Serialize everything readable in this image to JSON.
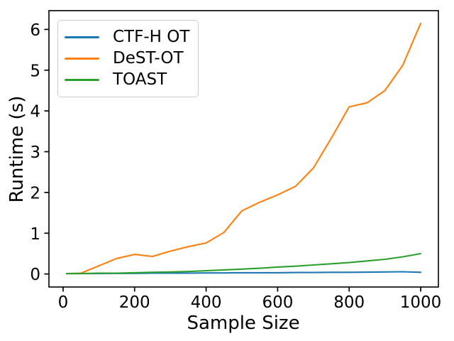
{
  "chart_data": {
    "type": "line",
    "title": "",
    "xlabel": "Sample Size",
    "ylabel": "Runtime (s)",
    "x": [
      10,
      50,
      100,
      150,
      200,
      250,
      300,
      350,
      400,
      450,
      500,
      550,
      600,
      650,
      700,
      750,
      800,
      850,
      900,
      950,
      1000
    ],
    "series": [
      {
        "name": "CTF-H OT",
        "color": "#1f77b4",
        "values": [
          0.01,
          0.01,
          0.01,
          0.015,
          0.015,
          0.02,
          0.02,
          0.02,
          0.025,
          0.025,
          0.03,
          0.03,
          0.03,
          0.035,
          0.035,
          0.04,
          0.04,
          0.045,
          0.05,
          0.055,
          0.04
        ]
      },
      {
        "name": "DeST-OT",
        "color": "#ff7f0e",
        "values": [
          0.01,
          0.02,
          0.2,
          0.38,
          0.48,
          0.43,
          0.56,
          0.67,
          0.76,
          1.02,
          1.55,
          1.76,
          1.94,
          2.15,
          2.6,
          3.33,
          4.1,
          4.2,
          4.5,
          5.12,
          6.15
        ]
      },
      {
        "name": "TOAST",
        "color": "#2ca02c",
        "values": [
          0.01,
          0.01,
          0.02,
          0.02,
          0.03,
          0.04,
          0.05,
          0.06,
          0.08,
          0.1,
          0.12,
          0.14,
          0.17,
          0.19,
          0.22,
          0.25,
          0.28,
          0.32,
          0.36,
          0.42,
          0.5
        ]
      }
    ],
    "xlim": [
      -39.5,
      1049.5
    ],
    "ylim": [
      -0.32,
      6.46
    ],
    "xticks": [
      0,
      200,
      400,
      600,
      800,
      1000
    ],
    "xtick_labels": [
      "0",
      "200",
      "400",
      "600",
      "800",
      "1000"
    ],
    "yticks": [
      0,
      1,
      2,
      3,
      4,
      5,
      6
    ],
    "ytick_labels": [
      "0",
      "1",
      "2",
      "3",
      "4",
      "5",
      "6"
    ],
    "grid": false,
    "legend_position": "upper left",
    "spine_color": "#000000"
  }
}
